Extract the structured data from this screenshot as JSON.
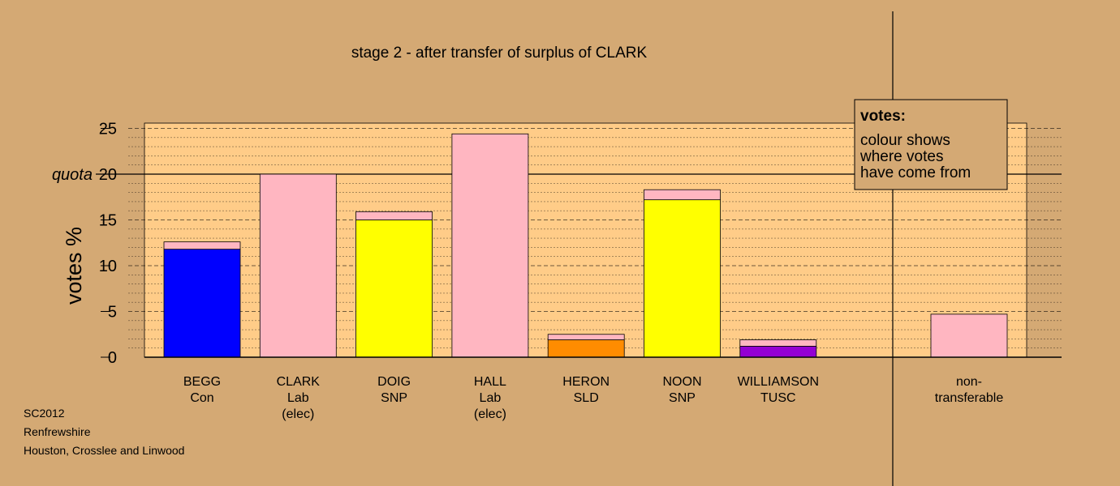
{
  "chart_data": {
    "type": "bar",
    "stacked": true,
    "title": "stage 2 - after transfer of surplus of CLARK",
    "ylabel": "votes %",
    "ylim": [
      0,
      25
    ],
    "yticks": [
      0,
      5,
      10,
      15,
      20,
      25
    ],
    "quota": {
      "value": 20,
      "label": "quota"
    },
    "candidates": [
      {
        "name": "BEGG",
        "party": "Con",
        "note": "",
        "color": "#0000FF",
        "first": 11.8,
        "transfer": 0.8
      },
      {
        "name": "CLARK",
        "party": "Lab",
        "note": "(elec)",
        "color": "#FFB6C1",
        "first": 20.0,
        "transfer": 0.0
      },
      {
        "name": "DOIG",
        "party": "SNP",
        "note": "",
        "color": "#FFFF00",
        "first": 15.0,
        "transfer": 0.9
      },
      {
        "name": "HALL",
        "party": "Lab",
        "note": "(elec)",
        "color": "#FFB6C1",
        "first": 24.4,
        "transfer": 0.0
      },
      {
        "name": "HERON",
        "party": "SLD",
        "note": "",
        "color": "#FF8C00",
        "first": 1.9,
        "transfer": 0.6
      },
      {
        "name": "NOON",
        "party": "SNP",
        "note": "",
        "color": "#FFFF00",
        "first": 17.2,
        "transfer": 1.1
      },
      {
        "name": "WILLIAMSON",
        "party": "TUSC",
        "note": "",
        "color": "#9400D3",
        "first": 1.2,
        "transfer": 0.7
      }
    ],
    "nontransferable": {
      "label_line1": "non-",
      "label_line2": "transferable",
      "value": 4.7,
      "color": "#FFB6C1"
    },
    "transfer_color": "#FFB6C1",
    "legend": {
      "title": "votes:",
      "lines": [
        "colour shows",
        "where votes",
        "have come from"
      ],
      "placement": "top-right"
    },
    "grid": true
  },
  "colors": {
    "background": "#D4A974",
    "plot_area": "#FFCC88"
  },
  "footer": {
    "line1": "SC2012",
    "line2": "Renfrewshire",
    "line3": "Houston, Crosslee and Linwood"
  }
}
